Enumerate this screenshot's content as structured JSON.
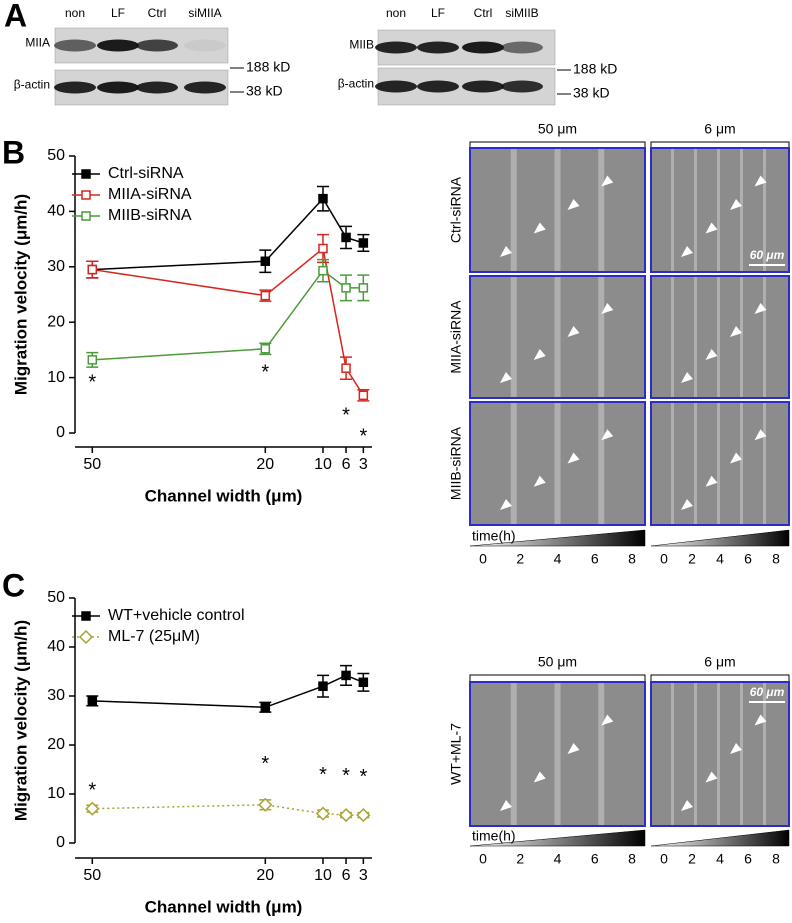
{
  "panel_labels": [
    "A",
    "B",
    "C"
  ],
  "blots": [
    {
      "lanes": [
        "non",
        "LF",
        "Ctrl",
        "siMIIA"
      ],
      "rows": [
        "MIIA",
        "β-actin"
      ],
      "markers": [
        "188 kD",
        "38 kD"
      ]
    },
    {
      "lanes": [
        "non",
        "LF",
        "Ctrl",
        "siMIIB"
      ],
      "rows": [
        "MIIB",
        "β-actin"
      ],
      "markers": [
        "188 kD",
        "38 kD"
      ]
    }
  ],
  "chart_data": [
    {
      "type": "line",
      "x": [
        50,
        20,
        10,
        6,
        3
      ],
      "xlim": [
        53,
        1.5
      ],
      "xticks": [
        50,
        20,
        10,
        6,
        3
      ],
      "ylim": [
        0,
        50
      ],
      "yticks": [
        0,
        10,
        20,
        30,
        40,
        50
      ],
      "xlabel": "Channel width (μm)",
      "ylabel": "Migration velocity (μm/h)",
      "legend": "upper left",
      "series": [
        {
          "name": "Ctrl-siRNA",
          "color": "#000000",
          "marker": "square-filled",
          "linestyle": "solid",
          "values": [
            29.5,
            31,
            42.3,
            35.3,
            34.3
          ],
          "errors": [
            1.5,
            2,
            2.2,
            2,
            1.5
          ]
        },
        {
          "name": "MIIA-siRNA",
          "color": "#d7261e",
          "marker": "square-open",
          "linestyle": "solid",
          "values": [
            29.5,
            24.8,
            33.3,
            11.7,
            6.8
          ],
          "errors": [
            1.5,
            1,
            2.5,
            2,
            1
          ]
        },
        {
          "name": "MIIB-siRNA",
          "color": "#4c9a3a",
          "marker": "square-open",
          "linestyle": "solid",
          "values": [
            13.2,
            15.2,
            29.3,
            26.2,
            26.2
          ],
          "errors": [
            1.3,
            1,
            2,
            2.3,
            2.3
          ]
        }
      ],
      "annotations": [
        {
          "text": "*",
          "x": 50,
          "y": 9
        },
        {
          "text": "*",
          "x": 20,
          "y": 10.8
        },
        {
          "text": "*",
          "x": 6,
          "y": 3
        },
        {
          "text": "*",
          "x": 3,
          "y": -0.8
        }
      ]
    },
    {
      "type": "line",
      "x": [
        50,
        20,
        10,
        6,
        3
      ],
      "xlim": [
        53,
        1.5
      ],
      "xticks": [
        50,
        20,
        10,
        6,
        3
      ],
      "ylim": [
        0,
        50
      ],
      "yticks": [
        0,
        10,
        20,
        30,
        40,
        50
      ],
      "xlabel": "Channel width (μm)",
      "ylabel": "Migration velocity (μm/h)",
      "legend": "upper left",
      "series": [
        {
          "name": "WT+vehicle control",
          "color": "#000000",
          "marker": "square-filled",
          "linestyle": "solid",
          "values": [
            29,
            27.7,
            32,
            34.2,
            32.8
          ],
          "errors": [
            1,
            1,
            2.2,
            2,
            1.8
          ]
        },
        {
          "name": "ML-7 (25μM)",
          "color": "#a8a432",
          "marker": "diamond-open",
          "linestyle": "dotted",
          "values": [
            7,
            7.8,
            6,
            5.7,
            5.7
          ],
          "errors": [
            0.7,
            1,
            0.7,
            0.5,
            0.5
          ]
        }
      ],
      "annotations": [
        {
          "text": "*",
          "x": 50,
          "y": 10.6
        },
        {
          "text": "*",
          "x": 20,
          "y": 16
        },
        {
          "text": "*",
          "x": 10,
          "y": 13.7
        },
        {
          "text": "*",
          "x": 6,
          "y": 13.5
        },
        {
          "text": "*",
          "x": 3,
          "y": 13.3
        }
      ]
    }
  ],
  "micrographs": [
    {
      "columns": [
        "50 μm",
        "6 μm"
      ],
      "rows": [
        "Ctrl-siRNA",
        "MIIA-siRNA",
        "MIIB-siRNA"
      ],
      "scale_bar": "60 μm",
      "time_label": "time(h)",
      "time_ticks": [
        0,
        2,
        4,
        6,
        8
      ]
    },
    {
      "columns": [
        "50 μm",
        "6 μm"
      ],
      "rows": [
        "WT+ML-7"
      ],
      "scale_bar": "60 μm",
      "time_label": "time(h)",
      "time_ticks": [
        0,
        2,
        4,
        6,
        8
      ]
    }
  ]
}
